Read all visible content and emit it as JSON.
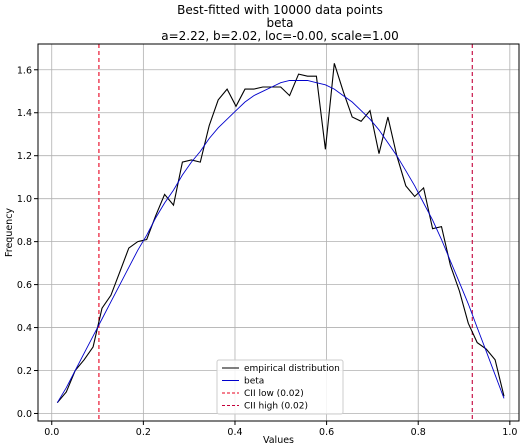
{
  "chart_data": {
    "type": "line",
    "title_lines": [
      "Best-fitted with 10000 data points",
      "beta",
      "a=2.22, b=2.02, loc=-0.00, scale=1.00"
    ],
    "xlabel": "Values",
    "ylabel": "Frequency",
    "xlim": [
      -0.03,
      1.02
    ],
    "ylim": [
      -0.035,
      1.72
    ],
    "xticks": [
      0.0,
      0.2,
      0.4,
      0.6,
      0.8,
      1.0
    ],
    "xtick_labels": [
      "0.0",
      "0.2",
      "0.4",
      "0.6",
      "0.8",
      "1.0"
    ],
    "yticks": [
      0.0,
      0.2,
      0.4,
      0.6,
      0.8,
      1.0,
      1.2,
      1.4,
      1.6
    ],
    "ytick_labels": [
      "0.0",
      "0.2",
      "0.4",
      "0.6",
      "0.8",
      "1.0",
      "1.2",
      "1.4",
      "1.6"
    ],
    "grid": true,
    "legend_position": "lower-center",
    "series": [
      {
        "name": "empirical distribution",
        "color": "#000000",
        "style": "solid",
        "x": [
          0.0122,
          0.0317,
          0.0512,
          0.0707,
          0.0902,
          0.1097,
          0.1292,
          0.1488,
          0.1683,
          0.1878,
          0.2073,
          0.2268,
          0.2463,
          0.2658,
          0.2853,
          0.3048,
          0.3243,
          0.3438,
          0.3633,
          0.3828,
          0.4023,
          0.4218,
          0.4413,
          0.4608,
          0.4803,
          0.4998,
          0.5193,
          0.5388,
          0.5583,
          0.5778,
          0.5973,
          0.6168,
          0.6363,
          0.6558,
          0.6753,
          0.6948,
          0.7143,
          0.7338,
          0.7533,
          0.7728,
          0.7923,
          0.8118,
          0.8313,
          0.8508,
          0.8703,
          0.8898,
          0.9093,
          0.9288,
          0.9483,
          0.9678,
          0.9873
        ],
        "y": [
          0.05,
          0.1,
          0.2,
          0.25,
          0.31,
          0.49,
          0.55,
          0.66,
          0.77,
          0.8,
          0.81,
          0.92,
          1.02,
          0.97,
          1.17,
          1.18,
          1.17,
          1.34,
          1.46,
          1.51,
          1.43,
          1.51,
          1.51,
          1.52,
          1.52,
          1.52,
          1.48,
          1.58,
          1.57,
          1.57,
          1.23,
          1.63,
          1.5,
          1.38,
          1.36,
          1.41,
          1.21,
          1.38,
          1.2,
          1.06,
          1.01,
          1.05,
          0.86,
          0.87,
          0.69,
          0.57,
          0.42,
          0.33,
          0.3,
          0.25,
          0.08
        ]
      },
      {
        "name": "beta",
        "color": "#0000cc",
        "style": "solid",
        "x": [
          0.0122,
          0.0317,
          0.0512,
          0.0707,
          0.0902,
          0.1097,
          0.1292,
          0.1488,
          0.1683,
          0.1878,
          0.2073,
          0.2268,
          0.2463,
          0.2658,
          0.2853,
          0.3048,
          0.3243,
          0.3438,
          0.3633,
          0.3828,
          0.4023,
          0.4218,
          0.4413,
          0.4608,
          0.4803,
          0.4998,
          0.5193,
          0.5388,
          0.5583,
          0.5778,
          0.5973,
          0.6168,
          0.6363,
          0.6558,
          0.6753,
          0.6948,
          0.7143,
          0.7338,
          0.7533,
          0.7728,
          0.7923,
          0.8118,
          0.8313,
          0.8508,
          0.8703,
          0.8898,
          0.9093,
          0.9288,
          0.9483,
          0.9678,
          0.9873
        ],
        "y": [
          0.05,
          0.12,
          0.2,
          0.28,
          0.36,
          0.44,
          0.52,
          0.6,
          0.68,
          0.76,
          0.83,
          0.91,
          0.98,
          1.04,
          1.11,
          1.17,
          1.22,
          1.28,
          1.33,
          1.37,
          1.41,
          1.45,
          1.48,
          1.5,
          1.52,
          1.54,
          1.55,
          1.55,
          1.55,
          1.54,
          1.53,
          1.51,
          1.48,
          1.45,
          1.41,
          1.37,
          1.32,
          1.26,
          1.2,
          1.13,
          1.06,
          0.98,
          0.9,
          0.81,
          0.71,
          0.61,
          0.51,
          0.4,
          0.29,
          0.18,
          0.07
        ]
      },
      {
        "name": "CII low (0.02)",
        "color": "#e8001f",
        "style": "dashed",
        "vline_x": 0.103
      },
      {
        "name": "CII high (0.02)",
        "color": "#c4003a",
        "style": "dashed",
        "vline_x": 0.918
      }
    ]
  }
}
